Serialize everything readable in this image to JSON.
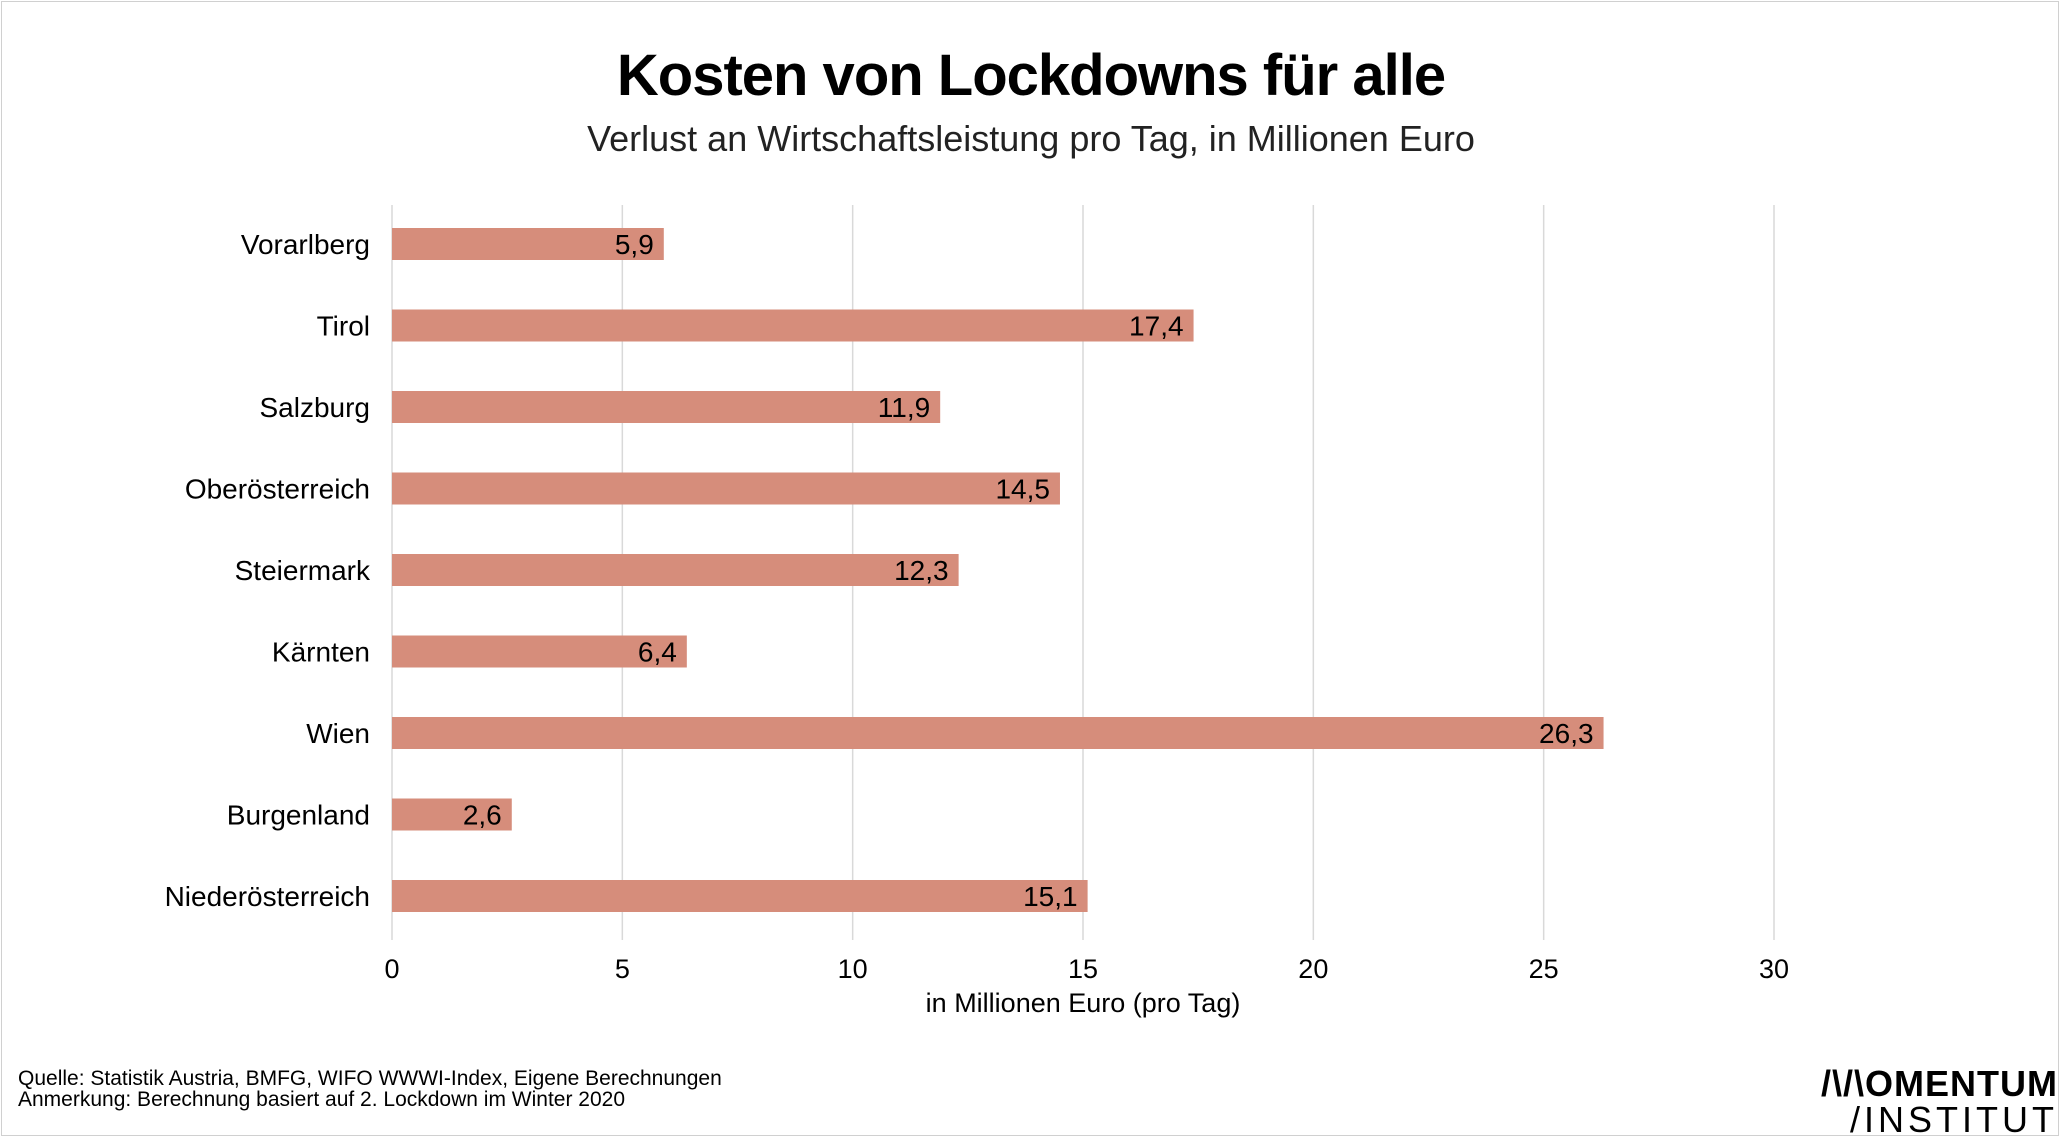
{
  "title": "Kosten von Lockdowns für alle",
  "subtitle": "Verlust an Wirtschaftsleistung pro Tag, in Millionen Euro",
  "footer": {
    "source": "Quelle: Statistik Austria, BMFG, WIFO WWWI-Index, Eigene Berechnungen",
    "note": "Anmerkung: Berechnung basiert auf 2. Lockdown im Winter 2020"
  },
  "logo": {
    "line1": "/\\/\\OMENTUM",
    "line2": "/INSTITUT"
  },
  "colors": {
    "bar": "#d68d7b",
    "grid": "#d9d9d9"
  },
  "chart_data": {
    "type": "bar",
    "orientation": "horizontal",
    "categories": [
      "Vorarlberg",
      "Tirol",
      "Salzburg",
      "Oberösterreich",
      "Steiermark",
      "Kärnten",
      "Wien",
      "Burgenland",
      "Niederösterreich"
    ],
    "values": [
      5.9,
      17.4,
      11.9,
      14.5,
      12.3,
      6.4,
      26.3,
      2.6,
      15.1
    ],
    "data_labels": [
      "5,9",
      "17,4",
      "11,9",
      "14,5",
      "12,3",
      "6,4",
      "26,3",
      "2,6",
      "15,1"
    ],
    "xlabel": "in Millionen Euro (pro Tag)",
    "xlim": [
      0,
      30
    ],
    "xticks": [
      0,
      5,
      10,
      15,
      20,
      25,
      30
    ],
    "grid": true,
    "legend": "none"
  }
}
